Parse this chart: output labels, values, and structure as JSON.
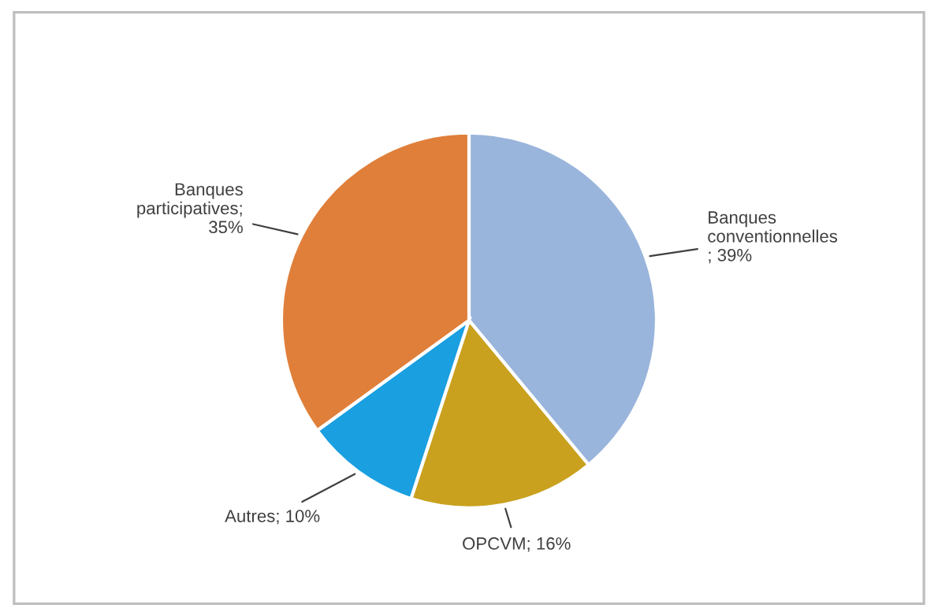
{
  "chart_data": {
    "type": "pie",
    "categories": [
      "Banques conventionnelles",
      "OPCVM",
      "Autres",
      "Banques participatives"
    ],
    "values": [
      39,
      16,
      10,
      35
    ],
    "value_labels": [
      "; 39%",
      "; 16%",
      "; 10%",
      "; 35%"
    ],
    "colors": [
      "#9ab5dc",
      "#c9a11e",
      "#1a9fe0",
      "#e07f3a"
    ],
    "legend": false
  }
}
